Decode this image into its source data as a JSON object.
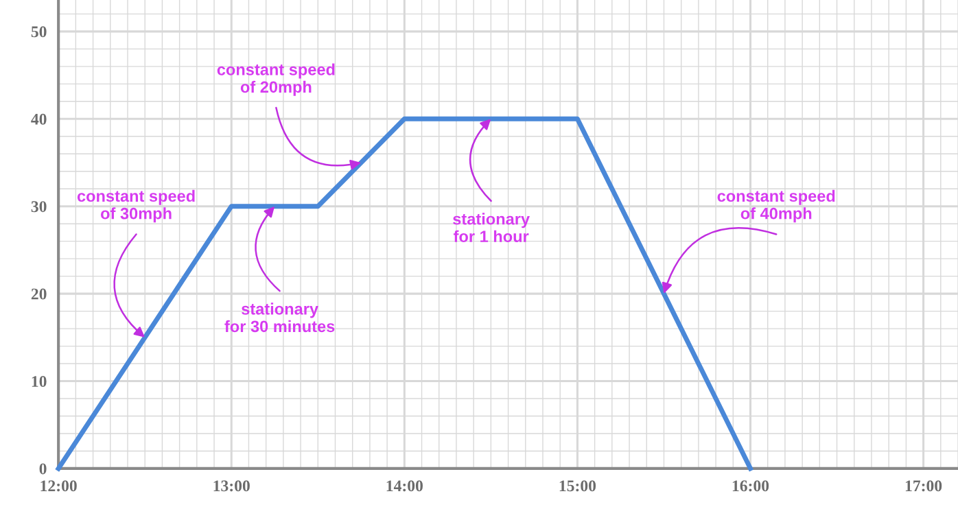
{
  "chart_data": {
    "type": "line",
    "x": [
      12,
      13,
      13.5,
      14,
      15,
      16
    ],
    "series": [
      {
        "color": "#4a88d8",
        "values": [
          0,
          30,
          30,
          40,
          40,
          0
        ]
      }
    ],
    "xlim": [
      12,
      17.2
    ],
    "ylim": [
      0,
      53.6
    ],
    "xticks": [
      {
        "value": 12,
        "label": "12:00"
      },
      {
        "value": 13,
        "label": "13:00"
      },
      {
        "value": 14,
        "label": "14:00"
      },
      {
        "value": 15,
        "label": "15:00"
      },
      {
        "value": 16,
        "label": "16:00"
      },
      {
        "value": 17,
        "label": "17:00"
      }
    ],
    "yticks": [
      0,
      10,
      20,
      30,
      40,
      50
    ],
    "grid": true,
    "marker": "none",
    "line_style": "solid",
    "annotations": [
      {
        "text": "constant speed\nof 30mph",
        "x": 12.5,
        "y": 15
      },
      {
        "text": "stationary\nfor 30 minutes",
        "x": 13.25,
        "y": 30
      },
      {
        "text": "constant speed\nof 20mph",
        "x": 13.75,
        "y": 35
      },
      {
        "text": "stationary\nfor 1 hour",
        "x": 14.5,
        "y": 40
      },
      {
        "text": "constant speed\nof 40mph",
        "x": 15.5,
        "y": 20
      }
    ]
  }
}
